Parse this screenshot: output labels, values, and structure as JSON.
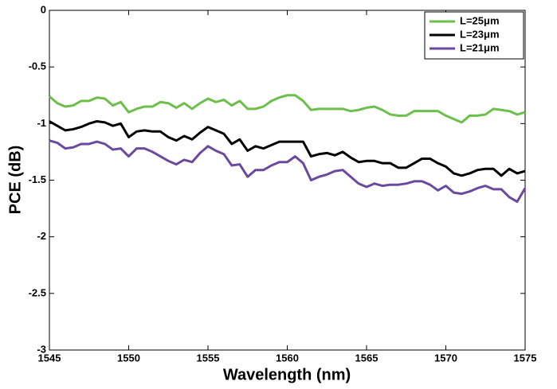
{
  "chart_data": {
    "type": "line",
    "x_label": "Wavelength (nm)",
    "y_label": "PCE (dB)",
    "x": [
      1545,
      1545.5,
      1546,
      1546.5,
      1547,
      1547.5,
      1548,
      1548.5,
      1549,
      1549.5,
      1550,
      1550.5,
      1551,
      1551.5,
      1552,
      1552.5,
      1553,
      1553.5,
      1554,
      1554.5,
      1555,
      1555.5,
      1556,
      1556.5,
      1557,
      1557.5,
      1558,
      1558.5,
      1559,
      1559.5,
      1560,
      1560.5,
      1561,
      1561.5,
      1562,
      1562.5,
      1563,
      1563.5,
      1564,
      1564.5,
      1565,
      1565.5,
      1566,
      1566.5,
      1567,
      1567.5,
      1568,
      1568.5,
      1569,
      1569.5,
      1570,
      1570.5,
      1571,
      1571.5,
      1572,
      1572.5,
      1573,
      1573.5,
      1574,
      1574.5,
      1575
    ],
    "series": [
      {
        "name": "L=25μm",
        "color": "#6cbf4b",
        "values": [
          -0.76,
          -0.82,
          -0.85,
          -0.84,
          -0.8,
          -0.8,
          -0.77,
          -0.78,
          -0.84,
          -0.81,
          -0.9,
          -0.87,
          -0.85,
          -0.85,
          -0.81,
          -0.82,
          -0.86,
          -0.82,
          -0.87,
          -0.82,
          -0.78,
          -0.81,
          -0.79,
          -0.84,
          -0.8,
          -0.87,
          -0.87,
          -0.85,
          -0.8,
          -0.77,
          -0.75,
          -0.75,
          -0.8,
          -0.88,
          -0.87,
          -0.87,
          -0.87,
          -0.87,
          -0.89,
          -0.88,
          -0.86,
          -0.85,
          -0.88,
          -0.92,
          -0.93,
          -0.93,
          -0.89,
          -0.89,
          -0.89,
          -0.89,
          -0.93,
          -0.96,
          -0.99,
          -0.93,
          -0.93,
          -0.92,
          -0.87,
          -0.88,
          -0.89,
          -0.92,
          -0.9
        ]
      },
      {
        "name": "L=23μm",
        "color": "#000000",
        "values": [
          -0.98,
          -1.02,
          -1.06,
          -1.05,
          -1.03,
          -1.0,
          -0.98,
          -0.99,
          -1.02,
          -1.0,
          -1.12,
          -1.07,
          -1.06,
          -1.07,
          -1.07,
          -1.12,
          -1.15,
          -1.11,
          -1.14,
          -1.08,
          -1.03,
          -1.06,
          -1.09,
          -1.18,
          -1.14,
          -1.24,
          -1.2,
          -1.22,
          -1.19,
          -1.16,
          -1.16,
          -1.16,
          -1.16,
          -1.29,
          -1.27,
          -1.26,
          -1.28,
          -1.25,
          -1.3,
          -1.34,
          -1.33,
          -1.33,
          -1.35,
          -1.35,
          -1.39,
          -1.39,
          -1.35,
          -1.31,
          -1.31,
          -1.35,
          -1.38,
          -1.44,
          -1.46,
          -1.44,
          -1.41,
          -1.4,
          -1.4,
          -1.46,
          -1.4,
          -1.44,
          -1.42
        ]
      },
      {
        "name": "L=21μm",
        "color": "#6a4a9e",
        "values": [
          -1.15,
          -1.17,
          -1.22,
          -1.21,
          -1.18,
          -1.18,
          -1.16,
          -1.18,
          -1.23,
          -1.22,
          -1.29,
          -1.22,
          -1.22,
          -1.25,
          -1.29,
          -1.33,
          -1.36,
          -1.32,
          -1.34,
          -1.26,
          -1.2,
          -1.24,
          -1.27,
          -1.37,
          -1.36,
          -1.47,
          -1.41,
          -1.41,
          -1.37,
          -1.34,
          -1.34,
          -1.29,
          -1.35,
          -1.5,
          -1.47,
          -1.45,
          -1.42,
          -1.41,
          -1.47,
          -1.53,
          -1.56,
          -1.53,
          -1.55,
          -1.54,
          -1.54,
          -1.53,
          -1.51,
          -1.51,
          -1.54,
          -1.59,
          -1.55,
          -1.61,
          -1.62,
          -1.6,
          -1.57,
          -1.55,
          -1.58,
          -1.58,
          -1.65,
          -1.69,
          -1.57
        ]
      }
    ],
    "xlim": [
      1545,
      1575
    ],
    "xticks": [
      1545,
      1550,
      1555,
      1560,
      1565,
      1570,
      1575
    ],
    "ylim": [
      -3,
      0
    ],
    "yticks": [
      0,
      -0.5,
      -1,
      -1.5,
      -2,
      -2.5,
      -3
    ],
    "grid": false,
    "legend": "top-right"
  }
}
